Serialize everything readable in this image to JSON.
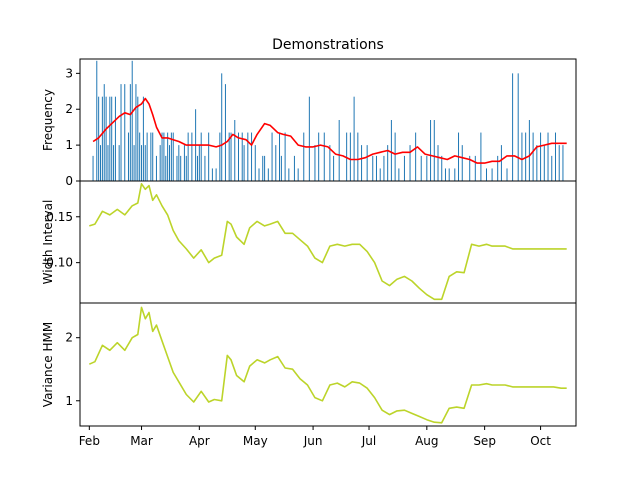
{
  "chart_data": [
    {
      "type": "bar",
      "title": "Demonstrations",
      "ylabel": "Frequency",
      "ylim": [
        0,
        3.4
      ],
      "yticks": [
        0,
        1,
        2,
        3
      ],
      "colors": {
        "bars": "#1f77b4",
        "line": "#ff0000"
      },
      "bars": {
        "x": [
          "2021-02-03",
          "2021-02-05",
          "2021-02-06",
          "2021-02-07",
          "2021-02-08",
          "2021-02-09",
          "2021-02-10",
          "2021-02-11",
          "2021-02-12",
          "2021-02-13",
          "2021-02-14",
          "2021-02-15",
          "2021-02-17",
          "2021-02-18",
          "2021-02-20",
          "2021-02-22",
          "2021-02-23",
          "2021-02-24",
          "2021-02-25",
          "2021-02-26",
          "2021-02-27",
          "2021-02-28",
          "2021-03-01",
          "2021-03-02",
          "2021-03-03",
          "2021-03-04",
          "2021-03-06",
          "2021-03-07",
          "2021-03-09",
          "2021-03-11",
          "2021-03-12",
          "2021-03-13",
          "2021-03-14",
          "2021-03-15",
          "2021-03-16",
          "2021-03-17",
          "2021-03-18",
          "2021-03-20",
          "2021-03-21",
          "2021-03-22",
          "2021-03-24",
          "2021-03-25",
          "2021-03-26",
          "2021-03-28",
          "2021-03-30",
          "2021-03-31",
          "2021-04-01",
          "2021-04-02",
          "2021-04-04",
          "2021-04-06",
          "2021-04-08",
          "2021-04-10",
          "2021-04-12",
          "2021-04-13",
          "2021-04-15",
          "2021-04-17",
          "2021-04-18",
          "2021-04-20",
          "2021-04-22",
          "2021-04-24",
          "2021-04-25",
          "2021-04-27",
          "2021-04-29",
          "2021-05-01",
          "2021-05-03",
          "2021-05-05",
          "2021-05-06",
          "2021-05-08",
          "2021-05-10",
          "2021-05-12",
          "2021-05-14",
          "2021-05-15",
          "2021-05-17",
          "2021-05-19",
          "2021-05-22",
          "2021-05-24",
          "2021-05-27",
          "2021-05-30",
          "2021-06-02",
          "2021-06-04",
          "2021-06-07",
          "2021-06-10",
          "2021-06-12",
          "2021-06-15",
          "2021-06-19",
          "2021-06-21",
          "2021-06-23",
          "2021-06-25",
          "2021-06-27",
          "2021-06-30",
          "2021-07-03",
          "2021-07-05",
          "2021-07-07",
          "2021-07-09",
          "2021-07-11",
          "2021-07-13",
          "2021-07-15",
          "2021-07-17",
          "2021-07-20",
          "2021-07-23",
          "2021-07-26",
          "2021-07-29",
          "2021-08-01",
          "2021-08-03",
          "2021-08-05",
          "2021-08-07",
          "2021-08-09",
          "2021-08-11",
          "2021-08-13",
          "2021-08-16",
          "2021-08-18",
          "2021-08-20",
          "2021-08-24",
          "2021-08-27",
          "2021-08-30",
          "2021-09-02",
          "2021-09-05",
          "2021-09-08",
          "2021-09-10",
          "2021-09-13",
          "2021-09-16",
          "2021-09-19",
          "2021-09-21",
          "2021-09-23",
          "2021-09-25",
          "2021-09-27",
          "2021-09-29",
          "2021-10-01",
          "2021-10-03",
          "2021-10-05",
          "2021-10-07",
          "2021-10-09",
          "2021-10-11",
          "2021-10-13"
        ],
        "values": [
          0.7,
          3.35,
          2.35,
          1.0,
          2.35,
          2.7,
          2.35,
          1.0,
          2.35,
          2.35,
          1.0,
          2.35,
          1.0,
          2.7,
          2.7,
          1.35,
          2.7,
          3.35,
          1.0,
          2.7,
          2.35,
          1.35,
          1.0,
          2.35,
          1.0,
          1.35,
          1.35,
          1.35,
          0.7,
          1.0,
          1.35,
          1.35,
          0.7,
          1.35,
          1.0,
          1.35,
          1.35,
          0.7,
          1.0,
          0.7,
          1.0,
          0.7,
          1.35,
          1.35,
          2.0,
          0.7,
          1.0,
          1.35,
          0.7,
          1.35,
          0.35,
          0.35,
          1.35,
          3.0,
          2.7,
          1.35,
          1.35,
          1.7,
          1.35,
          1.35,
          1.0,
          1.35,
          1.35,
          1.0,
          0.35,
          0.7,
          0.7,
          0.35,
          1.35,
          1.0,
          1.35,
          0.7,
          1.35,
          0.35,
          0.7,
          0.35,
          1.35,
          2.35,
          1.0,
          1.35,
          1.35,
          1.0,
          0.7,
          1.7,
          1.35,
          1.35,
          2.35,
          1.35,
          1.0,
          1.0,
          0.7,
          0.7,
          0.35,
          0.7,
          1.0,
          1.7,
          1.35,
          0.35,
          0.7,
          1.0,
          1.35,
          0.7,
          0.7,
          1.7,
          1.7,
          1.0,
          0.7,
          0.35,
          0.35,
          0.35,
          1.35,
          1.0,
          0.7,
          0.7,
          1.35,
          0.35,
          0.35,
          0.7,
          1.0,
          0.35,
          3.0,
          3.0,
          1.35,
          1.35,
          1.7,
          1.35,
          1.0,
          1.35,
          1.0,
          1.35,
          0.7,
          1.35,
          1.0,
          1.0
        ]
      },
      "series": [
        {
          "x": [
            "2021-02-03",
            "2021-02-06",
            "2021-02-10",
            "2021-02-14",
            "2021-02-17",
            "2021-02-20",
            "2021-02-23",
            "2021-02-26",
            "2021-03-01",
            "2021-03-03",
            "2021-03-05",
            "2021-03-07",
            "2021-03-09",
            "2021-03-12",
            "2021-03-15",
            "2021-03-18",
            "2021-03-21",
            "2021-03-25",
            "2021-03-29",
            "2021-04-02",
            "2021-04-06",
            "2021-04-10",
            "2021-04-13",
            "2021-04-16",
            "2021-04-19",
            "2021-04-22",
            "2021-04-26",
            "2021-04-29",
            "2021-05-02",
            "2021-05-06",
            "2021-05-09",
            "2021-05-13",
            "2021-05-16",
            "2021-05-20",
            "2021-05-24",
            "2021-05-28",
            "2021-06-01",
            "2021-06-05",
            "2021-06-09",
            "2021-06-13",
            "2021-06-17",
            "2021-06-21",
            "2021-06-25",
            "2021-06-29",
            "2021-07-03",
            "2021-07-07",
            "2021-07-11",
            "2021-07-15",
            "2021-07-19",
            "2021-07-23",
            "2021-07-27",
            "2021-07-31",
            "2021-08-04",
            "2021-08-08",
            "2021-08-12",
            "2021-08-16",
            "2021-08-20",
            "2021-08-24",
            "2021-08-28",
            "2021-09-01",
            "2021-09-05",
            "2021-09-09",
            "2021-09-13",
            "2021-09-17",
            "2021-09-21",
            "2021-09-25",
            "2021-09-29",
            "2021-10-03",
            "2021-10-07",
            "2021-10-11",
            "2021-10-15"
          ],
          "values": [
            1.1,
            1.2,
            1.45,
            1.65,
            1.8,
            1.9,
            1.85,
            2.05,
            2.15,
            2.3,
            2.15,
            1.85,
            1.5,
            1.2,
            1.2,
            1.15,
            1.1,
            1.0,
            1.0,
            1.0,
            1.0,
            0.95,
            1.0,
            1.1,
            1.3,
            1.2,
            1.15,
            1.0,
            1.3,
            1.6,
            1.55,
            1.35,
            1.3,
            1.25,
            1.0,
            0.95,
            0.95,
            1.0,
            0.95,
            0.75,
            0.7,
            0.6,
            0.6,
            0.65,
            0.75,
            0.8,
            0.85,
            0.75,
            0.8,
            0.8,
            0.95,
            0.75,
            0.7,
            0.65,
            0.6,
            0.7,
            0.65,
            0.6,
            0.5,
            0.5,
            0.55,
            0.55,
            0.7,
            0.7,
            0.6,
            0.7,
            0.95,
            1.0,
            1.05,
            1.05,
            1.05
          ]
        }
      ]
    },
    {
      "type": "line",
      "ylabel": "Width Interval",
      "ylim": [
        0.056,
        0.189
      ],
      "yticks": [
        0.1,
        0.15
      ],
      "ytick_labels": [
        "0.10",
        "0.15"
      ],
      "colors": {
        "line": "#bcd42a"
      },
      "series": [
        {
          "x": [
            "2021-02-01",
            "2021-02-04",
            "2021-02-08",
            "2021-02-12",
            "2021-02-16",
            "2021-02-20",
            "2021-02-24",
            "2021-02-27",
            "2021-03-01",
            "2021-03-03",
            "2021-03-05",
            "2021-03-07",
            "2021-03-09",
            "2021-03-12",
            "2021-03-15",
            "2021-03-18",
            "2021-03-21",
            "2021-03-25",
            "2021-03-29",
            "2021-04-02",
            "2021-04-06",
            "2021-04-09",
            "2021-04-13",
            "2021-04-16",
            "2021-04-18",
            "2021-04-21",
            "2021-04-25",
            "2021-04-28",
            "2021-05-02",
            "2021-05-06",
            "2021-05-09",
            "2021-05-13",
            "2021-05-17",
            "2021-05-21",
            "2021-05-25",
            "2021-05-29",
            "2021-06-02",
            "2021-06-06",
            "2021-06-10",
            "2021-06-14",
            "2021-06-18",
            "2021-06-22",
            "2021-06-26",
            "2021-06-30",
            "2021-07-04",
            "2021-07-08",
            "2021-07-12",
            "2021-07-16",
            "2021-07-20",
            "2021-07-24",
            "2021-07-28",
            "2021-08-01",
            "2021-08-05",
            "2021-08-09",
            "2021-08-13",
            "2021-08-17",
            "2021-08-21",
            "2021-08-25",
            "2021-08-29",
            "2021-09-02",
            "2021-09-05",
            "2021-09-08",
            "2021-09-12",
            "2021-09-16",
            "2021-09-20",
            "2021-09-23",
            "2021-09-26",
            "2021-09-30",
            "2021-10-04",
            "2021-10-08",
            "2021-10-12",
            "2021-10-15"
          ],
          "values": [
            0.14,
            0.142,
            0.156,
            0.152,
            0.158,
            0.152,
            0.162,
            0.165,
            0.186,
            0.18,
            0.184,
            0.168,
            0.174,
            0.162,
            0.152,
            0.135,
            0.124,
            0.115,
            0.105,
            0.114,
            0.1,
            0.105,
            0.108,
            0.145,
            0.142,
            0.128,
            0.12,
            0.138,
            0.145,
            0.14,
            0.142,
            0.145,
            0.132,
            0.132,
            0.125,
            0.118,
            0.105,
            0.1,
            0.118,
            0.12,
            0.118,
            0.12,
            0.12,
            0.112,
            0.1,
            0.08,
            0.075,
            0.082,
            0.085,
            0.08,
            0.072,
            0.065,
            0.06,
            0.06,
            0.085,
            0.09,
            0.089,
            0.12,
            0.118,
            0.12,
            0.118,
            0.118,
            0.118,
            0.115,
            0.115,
            0.115,
            0.115,
            0.115,
            0.115,
            0.115,
            0.115,
            0.115
          ]
        }
      ]
    },
    {
      "type": "line",
      "ylabel": "Variance HMM",
      "ylim": [
        0.6,
        2.55
      ],
      "yticks": [
        1,
        2
      ],
      "xlim": [
        "2021-01-27",
        "2021-10-20"
      ],
      "xticks": [
        "2021-02-01",
        "2021-03-01",
        "2021-04-01",
        "2021-05-01",
        "2021-06-01",
        "2021-07-01",
        "2021-08-01",
        "2021-09-01",
        "2021-10-01"
      ],
      "xtick_labels": [
        "Feb",
        "Mar",
        "Apr",
        "May",
        "Jun",
        "Jul",
        "Aug",
        "Sep",
        "Oct"
      ],
      "colors": {
        "line": "#bcd42a"
      },
      "series": [
        {
          "x": [
            "2021-02-01",
            "2021-02-04",
            "2021-02-08",
            "2021-02-12",
            "2021-02-16",
            "2021-02-20",
            "2021-02-24",
            "2021-02-27",
            "2021-03-01",
            "2021-03-03",
            "2021-03-05",
            "2021-03-07",
            "2021-03-09",
            "2021-03-12",
            "2021-03-15",
            "2021-03-18",
            "2021-03-21",
            "2021-03-25",
            "2021-03-29",
            "2021-04-02",
            "2021-04-06",
            "2021-04-09",
            "2021-04-13",
            "2021-04-16",
            "2021-04-18",
            "2021-04-21",
            "2021-04-25",
            "2021-04-28",
            "2021-05-02",
            "2021-05-06",
            "2021-05-09",
            "2021-05-13",
            "2021-05-17",
            "2021-05-21",
            "2021-05-25",
            "2021-05-29",
            "2021-06-02",
            "2021-06-06",
            "2021-06-10",
            "2021-06-14",
            "2021-06-18",
            "2021-06-22",
            "2021-06-26",
            "2021-06-30",
            "2021-07-04",
            "2021-07-08",
            "2021-07-12",
            "2021-07-16",
            "2021-07-20",
            "2021-07-24",
            "2021-07-28",
            "2021-08-01",
            "2021-08-05",
            "2021-08-09",
            "2021-08-13",
            "2021-08-17",
            "2021-08-21",
            "2021-08-25",
            "2021-08-29",
            "2021-09-02",
            "2021-09-05",
            "2021-09-08",
            "2021-09-12",
            "2021-09-16",
            "2021-09-20",
            "2021-09-23",
            "2021-09-26",
            "2021-09-30",
            "2021-10-04",
            "2021-10-08",
            "2021-10-12",
            "2021-10-15"
          ],
          "values": [
            1.58,
            1.62,
            1.88,
            1.8,
            1.92,
            1.8,
            2.0,
            2.05,
            2.48,
            2.3,
            2.4,
            2.1,
            2.2,
            1.95,
            1.7,
            1.45,
            1.3,
            1.1,
            0.98,
            1.15,
            0.98,
            1.02,
            1.0,
            1.72,
            1.65,
            1.4,
            1.3,
            1.55,
            1.65,
            1.6,
            1.65,
            1.7,
            1.52,
            1.5,
            1.35,
            1.25,
            1.05,
            1.0,
            1.25,
            1.28,
            1.22,
            1.3,
            1.28,
            1.2,
            1.05,
            0.85,
            0.78,
            0.84,
            0.85,
            0.8,
            0.75,
            0.7,
            0.66,
            0.65,
            0.88,
            0.9,
            0.88,
            1.25,
            1.25,
            1.27,
            1.25,
            1.25,
            1.25,
            1.22,
            1.22,
            1.22,
            1.22,
            1.22,
            1.22,
            1.22,
            1.2,
            1.2
          ]
        }
      ]
    }
  ]
}
